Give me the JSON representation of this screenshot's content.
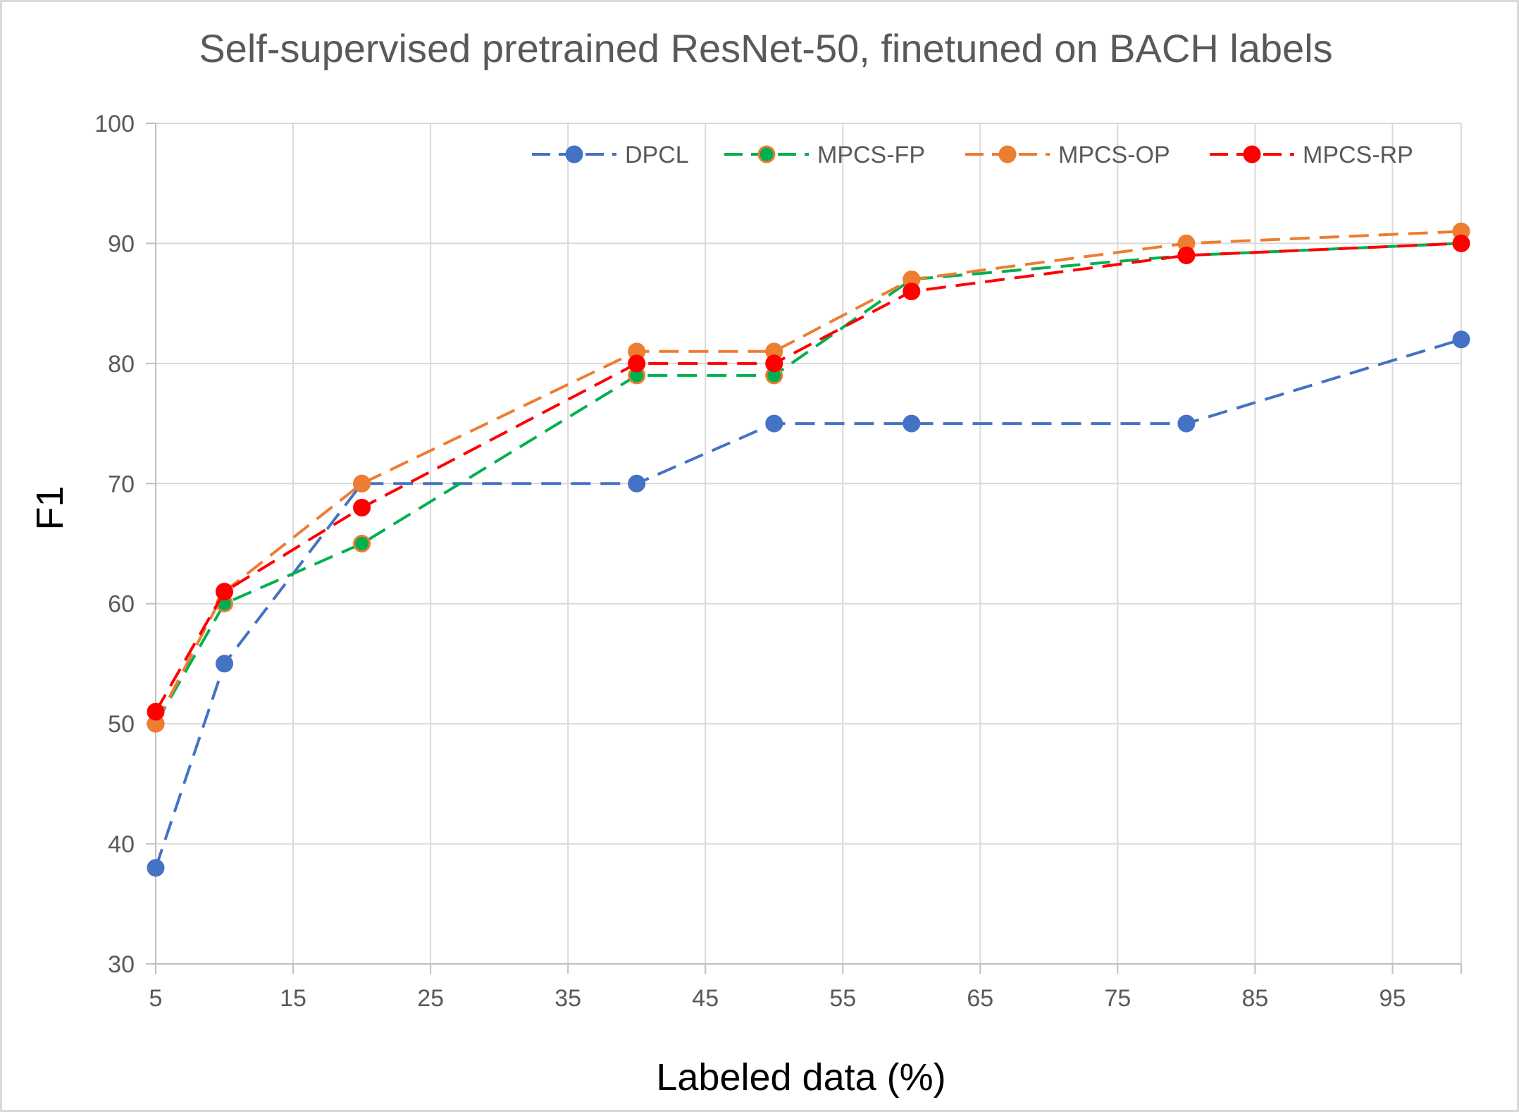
{
  "chart_data": {
    "type": "line",
    "title": "Self-supervised pretrained ResNet-50, finetuned on BACH labels",
    "xlabel": "Labeled data (%)",
    "ylabel": "F1",
    "xlim": [
      5,
      100
    ],
    "ylim": [
      30,
      100
    ],
    "xticks": [
      "5",
      "15",
      "25",
      "35",
      "45",
      "55",
      "65",
      "75",
      "85",
      "95"
    ],
    "yticks": [
      "30",
      "40",
      "50",
      "60",
      "70",
      "80",
      "90",
      "100"
    ],
    "grid": true,
    "legend_position": "top-right",
    "x": [
      5,
      10,
      20,
      40,
      50,
      60,
      80,
      100
    ],
    "series": [
      {
        "name": "DPCL",
        "color": "#4472C4",
        "marker_edge": "#4472C4",
        "values": [
          38,
          55,
          70,
          70,
          75,
          75,
          75,
          82
        ]
      },
      {
        "name": "MPCS-FP",
        "color": "#00B050",
        "marker_edge": "#ED7D31",
        "values": [
          50,
          60,
          65,
          79,
          79,
          87,
          89,
          90
        ]
      },
      {
        "name": "MPCS-OP",
        "color": "#ED7D31",
        "marker_edge": "#ED7D31",
        "values": [
          50,
          61,
          70,
          81,
          81,
          87,
          90,
          91
        ]
      },
      {
        "name": "MPCS-RP",
        "color": "#FF0000",
        "marker_edge": "#FF0000",
        "values": [
          51,
          61,
          68,
          80,
          80,
          86,
          89,
          90
        ]
      }
    ]
  }
}
